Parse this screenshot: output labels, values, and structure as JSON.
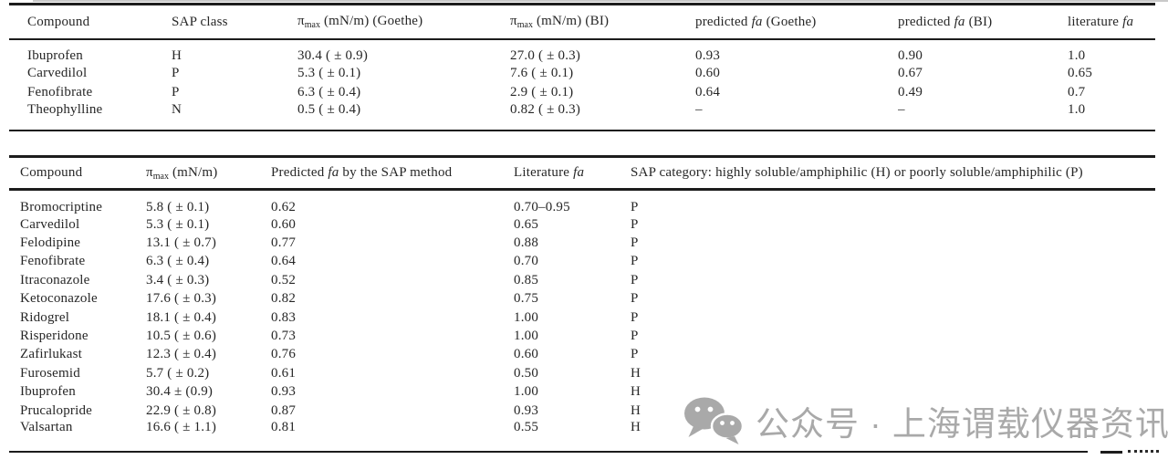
{
  "page": {
    "background": "#ffffff",
    "rule_color": "#1c1c1c"
  },
  "table1": {
    "columns": [
      "Compound",
      "SAP class",
      "π~max~ (mN/m) (Goethe)",
      "π~max~ (mN/m) (BI)",
      "predicted *fa* (Goethe)",
      "predicted *fa* (BI)",
      "literature *fa*"
    ],
    "rows": [
      [
        "Ibuprofen",
        "H",
        "30.4 ( ± 0.9)",
        "27.0 ( ± 0.3)",
        "0.93",
        "0.90",
        "1.0"
      ],
      [
        "Carvedilol",
        "P",
        "5.3 ( ± 0.1)",
        "7.6 ( ± 0.1)",
        "0.60",
        "0.67",
        "0.65"
      ],
      [
        "Fenofibrate",
        "P",
        "6.3 ( ± 0.4)",
        "2.9 ( ± 0.1)",
        "0.64",
        "0.49",
        "0.7"
      ],
      [
        "Theophylline",
        "N",
        "0.5 ( ± 0.4)",
        "0.82 ( ± 0.3)",
        "–",
        "–",
        "1.0"
      ]
    ]
  },
  "table2": {
    "columns": [
      "Compound",
      "π~max~ (mN/m)",
      "Predicted *fa* by the SAP method",
      "Literature *fa*",
      "SAP category: highly soluble/amphiphilic (H) or poorly soluble/amphiphilic (P)"
    ],
    "rows": [
      [
        "Bromocriptine",
        "5.8 ( ± 0.1)",
        "0.62",
        "0.70–0.95",
        "P"
      ],
      [
        "Carvedilol",
        "5.3 ( ± 0.1)",
        "0.60",
        "0.65",
        "P"
      ],
      [
        "Felodipine",
        "13.1 ( ± 0.7)",
        "0.77",
        "0.88",
        "P"
      ],
      [
        "Fenofibrate",
        "6.3 ( ± 0.4)",
        "0.64",
        "0.70",
        "P"
      ],
      [
        "Itraconazole",
        "3.4 ( ± 0.3)",
        "0.52",
        "0.85",
        "P"
      ],
      [
        "Ketoconazole",
        "17.6 ( ± 0.3)",
        "0.82",
        "0.75",
        "P"
      ],
      [
        "Ridogrel",
        "18.1 ( ± 0.4)",
        "0.83",
        "1.00",
        "P"
      ],
      [
        "Risperidone",
        "10.5 ( ± 0.6)",
        "0.73",
        "1.00",
        "P"
      ],
      [
        "Zafirlukast",
        "12.3 ( ± 0.4)",
        "0.76",
        "0.60",
        "P"
      ],
      [
        "Furosemid",
        "5.7 ( ± 0.2)",
        "0.61",
        "0.50",
        "H"
      ],
      [
        "Ibuprofen",
        "30.4 ± (0.9)",
        "0.93",
        "1.00",
        "H"
      ],
      [
        "Prucalopride",
        "22.9 ( ± 0.8)",
        "0.87",
        "0.93",
        "H"
      ],
      [
        "Valsartan",
        "16.6 ( ± 1.1)",
        "0.81",
        "0.55",
        "H"
      ]
    ]
  },
  "watermark": {
    "icon": "wechat-icon",
    "text": "公众号 · 上海谓载仪器资讯",
    "color": "#a9a9a9"
  }
}
